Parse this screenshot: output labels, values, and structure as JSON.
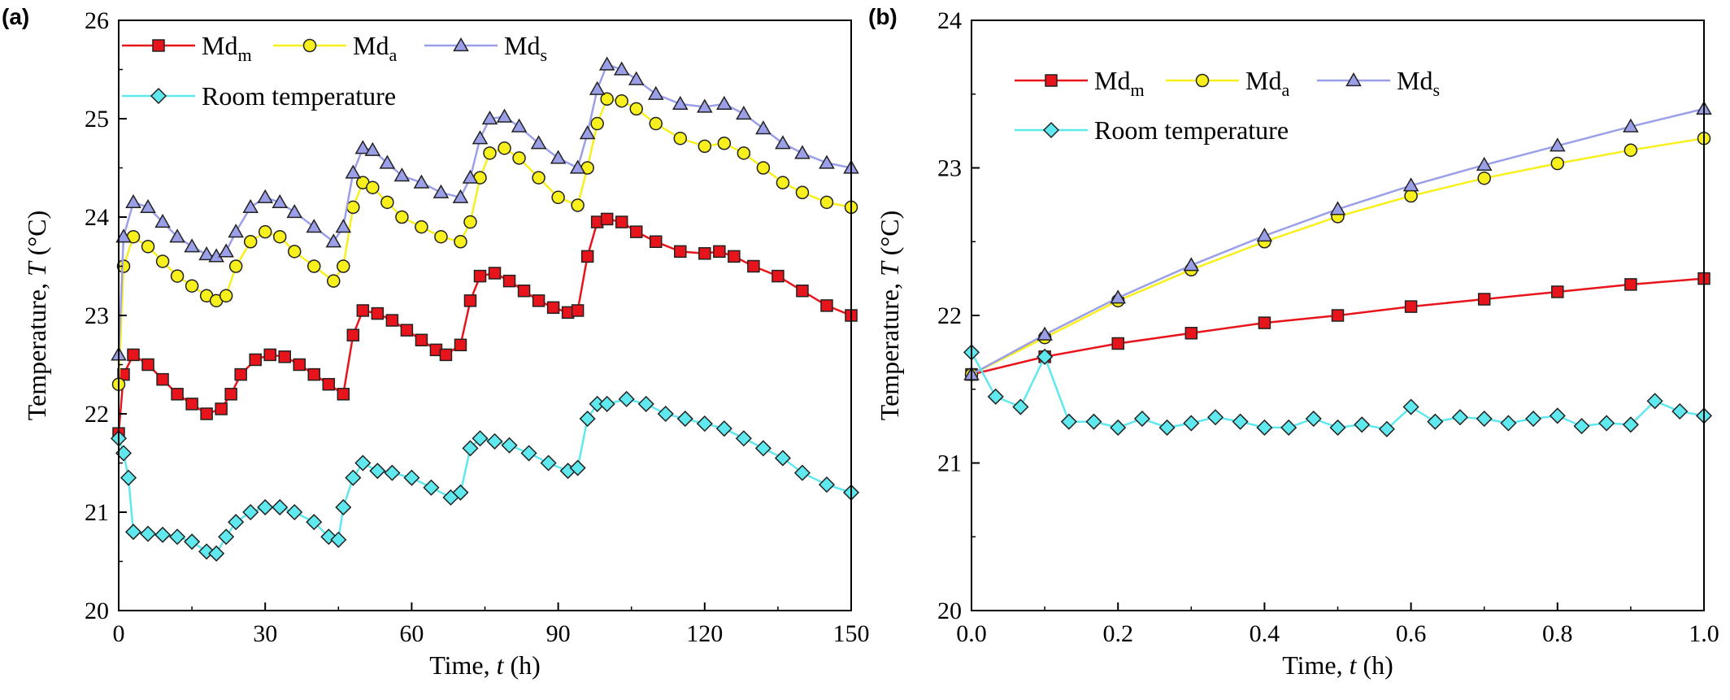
{
  "colors": {
    "md_m": "#e8141b",
    "md_a": "#f7f01c",
    "md_s": "#9b9fe8",
    "room": "#5fe8ee",
    "marker_stroke": "#222222",
    "axis": "#000000"
  },
  "chart_data": [
    {
      "type": "line",
      "panel_label": "(a)",
      "xlabel_text": "Time, ",
      "xlabel_var": "t",
      "xlabel_unit": " (h)",
      "ylabel_text": "Temperature, ",
      "ylabel_var": "T",
      "ylabel_unit": " (°C)",
      "xlim": [
        0,
        150
      ],
      "ylim": [
        20,
        26
      ],
      "xticks": [
        0,
        30,
        60,
        90,
        120,
        150
      ],
      "yticks": [
        20,
        21,
        22,
        23,
        24,
        25,
        26
      ],
      "grid": false,
      "legend_position": "top-left",
      "legend_layout": "two-rows",
      "series": [
        {
          "name_base": "Md",
          "name_sub": "m",
          "marker": "square",
          "color_key": "md_m",
          "x": [
            0,
            1,
            3,
            6,
            9,
            12,
            15,
            18,
            21,
            23,
            25,
            28,
            31,
            34,
            37,
            40,
            43,
            46,
            48,
            50,
            53,
            56,
            59,
            62,
            65,
            67,
            70,
            72,
            74,
            77,
            80,
            83,
            86,
            89,
            92,
            94,
            96,
            98,
            100,
            103,
            106,
            110,
            115,
            120,
            123,
            126,
            130,
            135,
            140,
            145,
            150
          ],
          "y": [
            21.8,
            22.4,
            22.6,
            22.5,
            22.35,
            22.2,
            22.1,
            22.0,
            22.05,
            22.2,
            22.4,
            22.55,
            22.6,
            22.58,
            22.5,
            22.4,
            22.3,
            22.2,
            22.8,
            23.05,
            23.02,
            22.95,
            22.85,
            22.75,
            22.65,
            22.6,
            22.7,
            23.15,
            23.4,
            23.43,
            23.35,
            23.25,
            23.15,
            23.08,
            23.03,
            23.05,
            23.6,
            23.95,
            23.98,
            23.95,
            23.85,
            23.75,
            23.65,
            23.63,
            23.65,
            23.6,
            23.5,
            23.4,
            23.25,
            23.1,
            23.0
          ]
        },
        {
          "name_base": "Md",
          "name_sub": "a",
          "marker": "circle",
          "color_key": "md_a",
          "x": [
            0,
            1,
            3,
            6,
            9,
            12,
            15,
            18,
            20,
            22,
            24,
            27,
            30,
            33,
            36,
            40,
            44,
            46,
            48,
            50,
            52,
            55,
            58,
            62,
            66,
            70,
            72,
            74,
            76,
            79,
            82,
            86,
            90,
            94,
            96,
            98,
            100,
            103,
            106,
            110,
            115,
            120,
            124,
            128,
            132,
            136,
            140,
            145,
            150
          ],
          "y": [
            22.3,
            23.5,
            23.8,
            23.7,
            23.55,
            23.4,
            23.3,
            23.2,
            23.15,
            23.2,
            23.5,
            23.75,
            23.85,
            23.8,
            23.65,
            23.5,
            23.35,
            23.5,
            24.1,
            24.35,
            24.3,
            24.15,
            24.0,
            23.9,
            23.8,
            23.75,
            23.95,
            24.4,
            24.65,
            24.7,
            24.6,
            24.4,
            24.2,
            24.12,
            24.5,
            24.95,
            25.2,
            25.18,
            25.1,
            24.95,
            24.8,
            24.72,
            24.75,
            24.65,
            24.5,
            24.35,
            24.25,
            24.15,
            24.1
          ]
        },
        {
          "name_base": "Md",
          "name_sub": "s",
          "marker": "triangle",
          "color_key": "md_s",
          "x": [
            0,
            1,
            3,
            6,
            9,
            12,
            15,
            18,
            20,
            22,
            24,
            27,
            30,
            33,
            36,
            40,
            44,
            46,
            48,
            50,
            52,
            55,
            58,
            62,
            66,
            70,
            72,
            74,
            76,
            79,
            82,
            86,
            90,
            94,
            96,
            98,
            100,
            103,
            106,
            110,
            115,
            120,
            124,
            128,
            132,
            136,
            140,
            145,
            150
          ],
          "y": [
            22.6,
            23.8,
            24.15,
            24.1,
            23.95,
            23.8,
            23.7,
            23.62,
            23.6,
            23.65,
            23.85,
            24.1,
            24.2,
            24.15,
            24.05,
            23.9,
            23.75,
            23.9,
            24.45,
            24.7,
            24.68,
            24.55,
            24.42,
            24.35,
            24.25,
            24.2,
            24.4,
            24.8,
            25.0,
            25.02,
            24.92,
            24.75,
            24.6,
            24.5,
            24.85,
            25.3,
            25.55,
            25.5,
            25.4,
            25.25,
            25.15,
            25.12,
            25.15,
            25.05,
            24.9,
            24.75,
            24.65,
            24.55,
            24.5
          ]
        },
        {
          "name": "Room temperature",
          "marker": "diamond",
          "color_key": "room",
          "x": [
            0,
            1,
            2,
            3,
            6,
            9,
            12,
            15,
            18,
            20,
            22,
            24,
            27,
            30,
            33,
            36,
            40,
            43,
            45,
            46,
            48,
            50,
            53,
            56,
            60,
            64,
            68,
            70,
            72,
            74,
            77,
            80,
            84,
            88,
            92,
            94,
            96,
            98,
            100,
            104,
            108,
            112,
            116,
            120,
            124,
            128,
            132,
            136,
            140,
            145,
            150
          ],
          "y": [
            21.75,
            21.6,
            21.35,
            20.8,
            20.78,
            20.77,
            20.75,
            20.7,
            20.6,
            20.58,
            20.75,
            20.9,
            21.0,
            21.05,
            21.05,
            21.0,
            20.9,
            20.75,
            20.72,
            21.05,
            21.35,
            21.5,
            21.42,
            21.4,
            21.35,
            21.25,
            21.15,
            21.2,
            21.65,
            21.75,
            21.72,
            21.68,
            21.6,
            21.5,
            21.42,
            21.45,
            21.95,
            22.1,
            22.1,
            22.15,
            22.1,
            22.0,
            21.95,
            21.9,
            21.85,
            21.75,
            21.65,
            21.55,
            21.4,
            21.28,
            21.2
          ]
        }
      ]
    },
    {
      "type": "line",
      "panel_label": "(b)",
      "xlabel_text": "Time, ",
      "xlabel_var": "t",
      "xlabel_unit": " (h)",
      "ylabel_text": "Temperature, ",
      "ylabel_var": "T",
      "ylabel_unit": " (°C)",
      "xlim": [
        0,
        1.0
      ],
      "ylim": [
        20,
        24
      ],
      "xticks": [
        0.0,
        0.2,
        0.4,
        0.6,
        0.8,
        1.0
      ],
      "yticks": [
        20,
        21,
        22,
        23,
        24
      ],
      "grid": false,
      "legend_position": "top-left",
      "legend_layout": "two-rows",
      "series": [
        {
          "name_base": "Md",
          "name_sub": "m",
          "marker": "square",
          "color_key": "md_m",
          "x": [
            0.0,
            0.1,
            0.2,
            0.3,
            0.4,
            0.5,
            0.6,
            0.7,
            0.8,
            0.9,
            1.0
          ],
          "y": [
            21.6,
            21.72,
            21.81,
            21.88,
            21.95,
            22.0,
            22.06,
            22.11,
            22.16,
            22.21,
            22.25
          ]
        },
        {
          "name_base": "Md",
          "name_sub": "a",
          "marker": "circle",
          "color_key": "md_a",
          "x": [
            0.0,
            0.1,
            0.2,
            0.3,
            0.4,
            0.5,
            0.6,
            0.7,
            0.8,
            0.9,
            1.0
          ],
          "y": [
            21.6,
            21.85,
            22.1,
            22.31,
            22.5,
            22.67,
            22.81,
            22.93,
            23.03,
            23.12,
            23.2
          ]
        },
        {
          "name_base": "Md",
          "name_sub": "s",
          "marker": "triangle",
          "color_key": "md_s",
          "x": [
            0.0,
            0.1,
            0.2,
            0.3,
            0.4,
            0.5,
            0.6,
            0.7,
            0.8,
            0.9,
            1.0
          ],
          "y": [
            21.6,
            21.87,
            22.12,
            22.34,
            22.54,
            22.72,
            22.88,
            23.02,
            23.15,
            23.28,
            23.4
          ]
        },
        {
          "name": "Room temperature",
          "marker": "diamond",
          "color_key": "room",
          "x": [
            0.0,
            0.033,
            0.067,
            0.1,
            0.133,
            0.167,
            0.2,
            0.233,
            0.267,
            0.3,
            0.333,
            0.367,
            0.4,
            0.433,
            0.467,
            0.5,
            0.533,
            0.567,
            0.6,
            0.633,
            0.667,
            0.7,
            0.733,
            0.767,
            0.8,
            0.833,
            0.867,
            0.9,
            0.933,
            0.967,
            1.0
          ],
          "y": [
            21.75,
            21.45,
            21.38,
            21.72,
            21.28,
            21.28,
            21.24,
            21.3,
            21.24,
            21.27,
            21.31,
            21.28,
            21.24,
            21.24,
            21.3,
            21.24,
            21.26,
            21.23,
            21.38,
            21.28,
            21.31,
            21.3,
            21.27,
            21.3,
            21.32,
            21.25,
            21.27,
            21.26,
            21.42,
            21.35,
            21.32
          ]
        }
      ]
    }
  ]
}
